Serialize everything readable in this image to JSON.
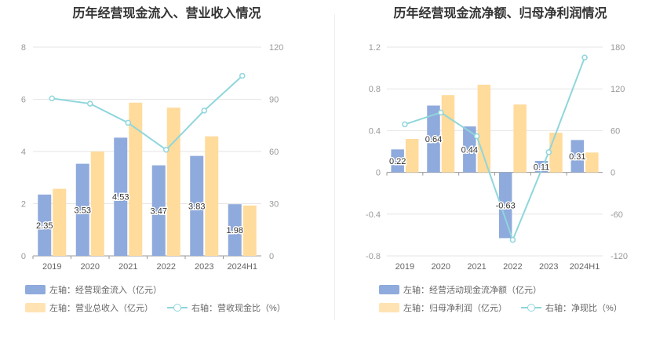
{
  "chart_data": [
    {
      "type": "bar",
      "title": "历年经营现金流入、营业收入情况",
      "categories": [
        "2019",
        "2020",
        "2021",
        "2022",
        "2023",
        "2024H1"
      ],
      "left_axis": {
        "ylim": [
          0,
          8
        ],
        "ticks": [
          "0",
          "2",
          "4",
          "6",
          "8"
        ]
      },
      "right_axis": {
        "ylim": [
          0,
          120
        ],
        "ticks": [
          "0",
          "30",
          "60",
          "90",
          "120"
        ]
      },
      "series": [
        {
          "name": "左轴：经营现金流入（亿元）",
          "type": "bar",
          "axis": "left",
          "color": "#8faadc",
          "values": [
            2.35,
            3.53,
            4.53,
            3.47,
            3.83,
            1.98
          ],
          "labels": [
            "2.35",
            "3.53",
            "4.53",
            "3.47",
            "3.83",
            "1.98"
          ]
        },
        {
          "name": "左轴：营业总收入（亿元）",
          "type": "bar",
          "axis": "left",
          "color": "#ffdb9c",
          "values": [
            2.57,
            4.0,
            5.87,
            5.68,
            4.58,
            1.93
          ]
        },
        {
          "name": "右轴：营收现金比（%）",
          "type": "line",
          "axis": "right",
          "color": "#8fd6dc",
          "values": [
            90.5,
            87.5,
            76.5,
            61.0,
            83.5,
            103.5
          ]
        }
      ],
      "legend": [
        "左轴：经营现金流入（亿元）",
        "左轴：营业总收入（亿元）",
        "右轴：营收现金比（%）"
      ]
    },
    {
      "type": "bar",
      "title": "历年经营现金流净额、归母净利润情况",
      "categories": [
        "2019",
        "2020",
        "2021",
        "2022",
        "2023",
        "2024H1"
      ],
      "left_axis": {
        "ylim": [
          -0.8,
          1.2
        ],
        "ticks": [
          "-0.8",
          "-0.4",
          "0",
          "0.4",
          "0.8",
          "1.2"
        ]
      },
      "right_axis": {
        "ylim": [
          -120,
          180
        ],
        "ticks": [
          "-120",
          "-60",
          "0",
          "60",
          "120",
          "180"
        ]
      },
      "series": [
        {
          "name": "左轴：经营活动现金流净额（亿元）",
          "type": "bar",
          "axis": "left",
          "color": "#8faadc",
          "values": [
            0.22,
            0.64,
            0.44,
            -0.63,
            0.11,
            0.31
          ],
          "labels": [
            "0.22",
            "0.64",
            "0.44",
            "-0.63",
            "0.11",
            "0.31"
          ]
        },
        {
          "name": "左轴：归母净利润（亿元）",
          "type": "bar",
          "axis": "left",
          "color": "#ffdb9c",
          "values": [
            0.32,
            0.74,
            0.84,
            0.65,
            0.38,
            0.19
          ]
        },
        {
          "name": "右轴：净现比（%）",
          "type": "line",
          "axis": "right",
          "color": "#8fd6dc",
          "values": [
            69,
            86,
            52,
            -97,
            29,
            165
          ]
        }
      ],
      "legend": [
        "左轴：经营活动现金流净额（亿元）",
        "左轴：归母净利润（亿元）",
        "右轴：净现比（%）"
      ]
    }
  ]
}
